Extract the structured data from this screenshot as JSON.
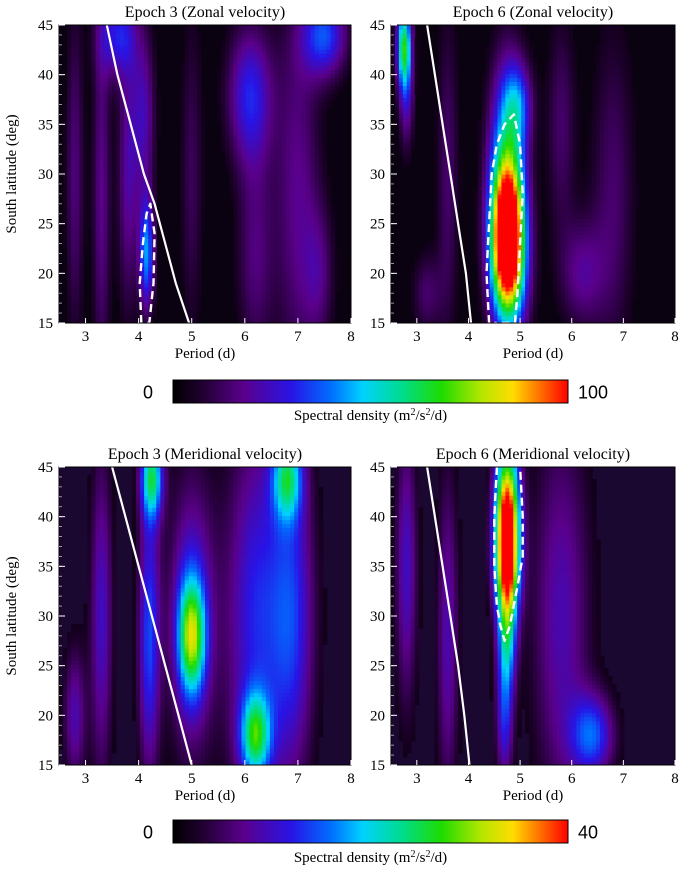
{
  "chart_data": [
    {
      "type": "heatmap",
      "title": "Epoch 3 (Zonal velocity)",
      "xlabel": "Period (d)",
      "ylabel": "South latitude (deg)",
      "xlim": [
        2.5,
        8
      ],
      "ylim": [
        15,
        45
      ],
      "xticks": [
        "3",
        "4",
        "5",
        "6",
        "7",
        "8"
      ],
      "yticks": [
        "15",
        "20",
        "25",
        "30",
        "35",
        "40",
        "45"
      ],
      "colorbar": "zonal",
      "background": "#0a0210",
      "blobs": [
        {
          "x": 2.8,
          "y": 30,
          "sx": 0.12,
          "sy": 12,
          "a": 16
        },
        {
          "x": 3.3,
          "y": 28,
          "sx": 0.12,
          "sy": 14,
          "a": 18
        },
        {
          "x": 3.8,
          "y": 30,
          "sx": 0.14,
          "sy": 10,
          "a": 20
        },
        {
          "x": 4.15,
          "y": 22,
          "sx": 0.1,
          "sy": 4,
          "a": 42
        },
        {
          "x": 4.1,
          "y": 36,
          "sx": 0.15,
          "sy": 6,
          "a": 22
        },
        {
          "x": 3.6,
          "y": 44,
          "sx": 0.25,
          "sy": 3,
          "a": 28
        },
        {
          "x": 5.0,
          "y": 30,
          "sx": 0.15,
          "sy": 12,
          "a": 12
        },
        {
          "x": 6.1,
          "y": 38,
          "sx": 0.3,
          "sy": 5,
          "a": 30
        },
        {
          "x": 6.2,
          "y": 22,
          "sx": 0.25,
          "sy": 8,
          "a": 16
        },
        {
          "x": 7.0,
          "y": 28,
          "sx": 0.3,
          "sy": 14,
          "a": 18
        },
        {
          "x": 7.5,
          "y": 44,
          "sx": 0.3,
          "sy": 3,
          "a": 35
        },
        {
          "x": 7.4,
          "y": 20,
          "sx": 0.2,
          "sy": 5,
          "a": 14
        }
      ],
      "white_curve": {
        "x": [
          3.4,
          3.6,
          3.85,
          4.1,
          4.3,
          4.5,
          4.7,
          4.95
        ],
        "y": [
          45,
          40,
          35,
          30,
          27,
          23,
          19,
          15
        ]
      },
      "contour": {
        "x": [
          4.05,
          4.02,
          4.08,
          4.15,
          4.22,
          4.3,
          4.28,
          4.2,
          4.12
        ],
        "y": [
          15,
          19,
          23,
          26,
          27,
          24,
          19,
          15,
          15
        ]
      }
    },
    {
      "type": "heatmap",
      "title": "Epoch 6 (Zonal velocity)",
      "xlabel": "Period (d)",
      "ylabel": "",
      "xlim": [
        2.5,
        8
      ],
      "ylim": [
        15,
        45
      ],
      "xticks": [
        "3",
        "4",
        "5",
        "6",
        "7",
        "8"
      ],
      "yticks": [
        "15",
        "20",
        "25",
        "30",
        "35",
        "40",
        "45"
      ],
      "colorbar": "zonal",
      "background": "#0a0210",
      "blobs": [
        {
          "x": 4.75,
          "y": 24,
          "sx": 0.22,
          "sy": 5,
          "a": 92
        },
        {
          "x": 4.75,
          "y": 30,
          "sx": 0.25,
          "sy": 8,
          "a": 45
        },
        {
          "x": 4.8,
          "y": 20,
          "sx": 0.25,
          "sy": 5,
          "a": 35
        },
        {
          "x": 4.95,
          "y": 37,
          "sx": 0.2,
          "sy": 3,
          "a": 28
        },
        {
          "x": 2.75,
          "y": 43,
          "sx": 0.1,
          "sy": 3,
          "a": 60
        },
        {
          "x": 2.8,
          "y": 38,
          "sx": 0.1,
          "sy": 4,
          "a": 22
        },
        {
          "x": 3.6,
          "y": 30,
          "sx": 0.15,
          "sy": 12,
          "a": 14
        },
        {
          "x": 5.8,
          "y": 35,
          "sx": 0.2,
          "sy": 8,
          "a": 14
        },
        {
          "x": 6.2,
          "y": 20,
          "sx": 0.3,
          "sy": 4,
          "a": 18
        },
        {
          "x": 6.8,
          "y": 28,
          "sx": 0.3,
          "sy": 12,
          "a": 14
        },
        {
          "x": 3.2,
          "y": 18,
          "sx": 0.2,
          "sy": 3,
          "a": 14
        }
      ],
      "white_curve": {
        "x": [
          3.2,
          3.35,
          3.5,
          3.65,
          3.8,
          3.95,
          4.05
        ],
        "y": [
          45,
          40,
          35,
          30,
          25,
          20,
          15
        ]
      },
      "contour": {
        "x": [
          4.4,
          4.35,
          4.4,
          4.45,
          4.55,
          4.7,
          4.88,
          5.0,
          5.05,
          5.0,
          4.95,
          4.9,
          4.7,
          4.5
        ],
        "y": [
          15,
          20,
          25,
          30,
          33,
          35,
          36,
          33,
          28,
          23,
          18,
          15,
          15,
          15
        ]
      }
    },
    {
      "type": "heatmap",
      "title": "Epoch 3 (Meridional velocity)",
      "xlabel": "Period (d)",
      "ylabel": "South latitude (deg)",
      "xlim": [
        2.5,
        8
      ],
      "ylim": [
        15,
        45
      ],
      "xticks": [
        "3",
        "4",
        "5",
        "6",
        "7",
        "8"
      ],
      "yticks": [
        "15",
        "20",
        "25",
        "30",
        "35",
        "40",
        "45"
      ],
      "colorbar": "meridional",
      "background": "#1a0830",
      "blobs": [
        {
          "x": 5.0,
          "y": 28,
          "sx": 0.18,
          "sy": 4,
          "a": 22
        },
        {
          "x": 5.0,
          "y": 30,
          "sx": 0.3,
          "sy": 10,
          "a": 12
        },
        {
          "x": 6.2,
          "y": 18,
          "sx": 0.2,
          "sy": 3,
          "a": 20
        },
        {
          "x": 6.2,
          "y": 30,
          "sx": 0.4,
          "sy": 14,
          "a": 12
        },
        {
          "x": 4.25,
          "y": 44,
          "sx": 0.15,
          "sy": 3,
          "a": 22
        },
        {
          "x": 4.2,
          "y": 28,
          "sx": 0.15,
          "sy": 10,
          "a": 14
        },
        {
          "x": 6.8,
          "y": 44,
          "sx": 0.2,
          "sy": 3,
          "a": 18
        },
        {
          "x": 6.9,
          "y": 30,
          "sx": 0.3,
          "sy": 12,
          "a": 12
        },
        {
          "x": 3.3,
          "y": 30,
          "sx": 0.15,
          "sy": 12,
          "a": 10
        },
        {
          "x": 2.8,
          "y": 20,
          "sx": 0.15,
          "sy": 5,
          "a": 9
        }
      ],
      "white_curve": {
        "x": [
          3.5,
          3.75,
          4.0,
          4.25,
          4.5,
          4.75,
          5.0
        ],
        "y": [
          45,
          40,
          35,
          30,
          25,
          20,
          15
        ]
      },
      "contour": null
    },
    {
      "type": "heatmap",
      "title": "Epoch 6 (Meridional velocity)",
      "xlabel": "Period (d)",
      "ylabel": "",
      "xlim": [
        2.5,
        8
      ],
      "ylim": [
        15,
        45
      ],
      "xticks": [
        "3",
        "4",
        "5",
        "6",
        "7",
        "8"
      ],
      "yticks": [
        "15",
        "20",
        "25",
        "30",
        "35",
        "40",
        "45"
      ],
      "colorbar": "meridional",
      "background": "#1a0830",
      "blobs": [
        {
          "x": 4.75,
          "y": 41,
          "sx": 0.17,
          "sy": 5,
          "a": 35
        },
        {
          "x": 4.75,
          "y": 35,
          "sx": 0.17,
          "sy": 4,
          "a": 28
        },
        {
          "x": 4.75,
          "y": 28,
          "sx": 0.13,
          "sy": 4,
          "a": 16
        },
        {
          "x": 4.7,
          "y": 20,
          "sx": 0.12,
          "sy": 5,
          "a": 12
        },
        {
          "x": 6.4,
          "y": 18,
          "sx": 0.3,
          "sy": 3,
          "a": 14
        },
        {
          "x": 5.8,
          "y": 30,
          "sx": 0.4,
          "sy": 14,
          "a": 9
        },
        {
          "x": 2.8,
          "y": 35,
          "sx": 0.15,
          "sy": 10,
          "a": 10
        },
        {
          "x": 3.6,
          "y": 28,
          "sx": 0.15,
          "sy": 12,
          "a": 9
        }
      ],
      "white_curve": {
        "x": [
          3.2,
          3.35,
          3.5,
          3.65,
          3.8,
          3.92,
          4.02
        ],
        "y": [
          45,
          40,
          35,
          30,
          25,
          20,
          15
        ]
      },
      "contour": {
        "x": [
          4.55,
          4.5,
          4.5,
          4.55,
          4.62,
          4.7,
          4.8,
          4.95,
          5.05,
          5.05,
          5.0
        ],
        "y": [
          45,
          40,
          35,
          31,
          29,
          27.5,
          29,
          33,
          36,
          40,
          45
        ]
      }
    }
  ],
  "colorbars": {
    "zonal": {
      "min": 0,
      "max": 100,
      "min_label": "0",
      "max_label": "100",
      "label_prefix": "Spectral density (m",
      "label_sup1": "2",
      "label_mid": "/s",
      "label_sup2": "2",
      "label_suffix": "/d)"
    },
    "meridional": {
      "min": 0,
      "max": 40,
      "min_label": "0",
      "max_label": "40",
      "label_prefix": "Spectral density (m",
      "label_sup1": "2",
      "label_mid": "/s",
      "label_sup2": "2",
      "label_suffix": "/d)"
    }
  }
}
